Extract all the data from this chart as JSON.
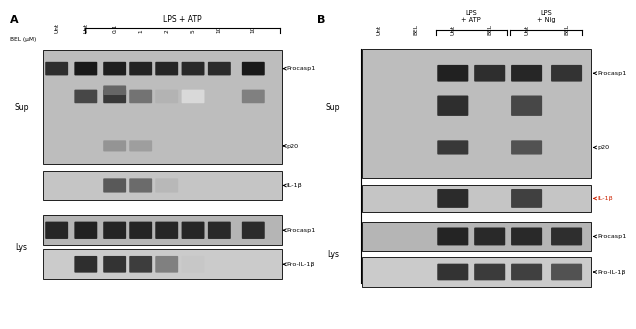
{
  "fig_width": 6.15,
  "fig_height": 3.22,
  "bg_color": "#ffffff",
  "A_label": "A",
  "B_label": "B",
  "A_title": "LPS + ATP",
  "A_col_labels": [
    "Unt",
    "Unt",
    "0.1",
    "1",
    "2",
    "5",
    "10",
    "10"
  ],
  "A_bel_label": "BEL (μM)",
  "A_sup_label": "Sup",
  "A_lys_label": "Lys",
  "B_title_atp": "LPS\n+ ATP",
  "B_title_nig": "LPS\n+ Nig",
  "B_col_labels": [
    "Unt",
    "BEL",
    "Unt",
    "BEL",
    "Unt",
    "BEL"
  ],
  "B_sup_label": "Sup",
  "B_lys_label": "Lys",
  "arrow_color": "#000000",
  "arrow_color_red": "#cc2200",
  "labels_A": [
    "Procasp1",
    "p20",
    "IL-1β",
    "Procasp1",
    "Pro-IL-1β"
  ],
  "labels_B": [
    "Procasp1",
    "p20",
    "IL-1β",
    "Procasp1",
    "Pro-IL-1β"
  ],
  "sup_bg_A": "#bdbdbd",
  "il1b_bg_A": "#c5c5c5",
  "lys_proc_bg_A": "#b5b5b5",
  "lys_pil1b_bg_A": "#cbcbcb",
  "sup_bg_B": "#bdbdbd",
  "il1b_bg_B": "#c5c5c5",
  "lys_proc_bg_B": "#b5b5b5",
  "lys_pil1b_bg_B": "#cbcbcb"
}
